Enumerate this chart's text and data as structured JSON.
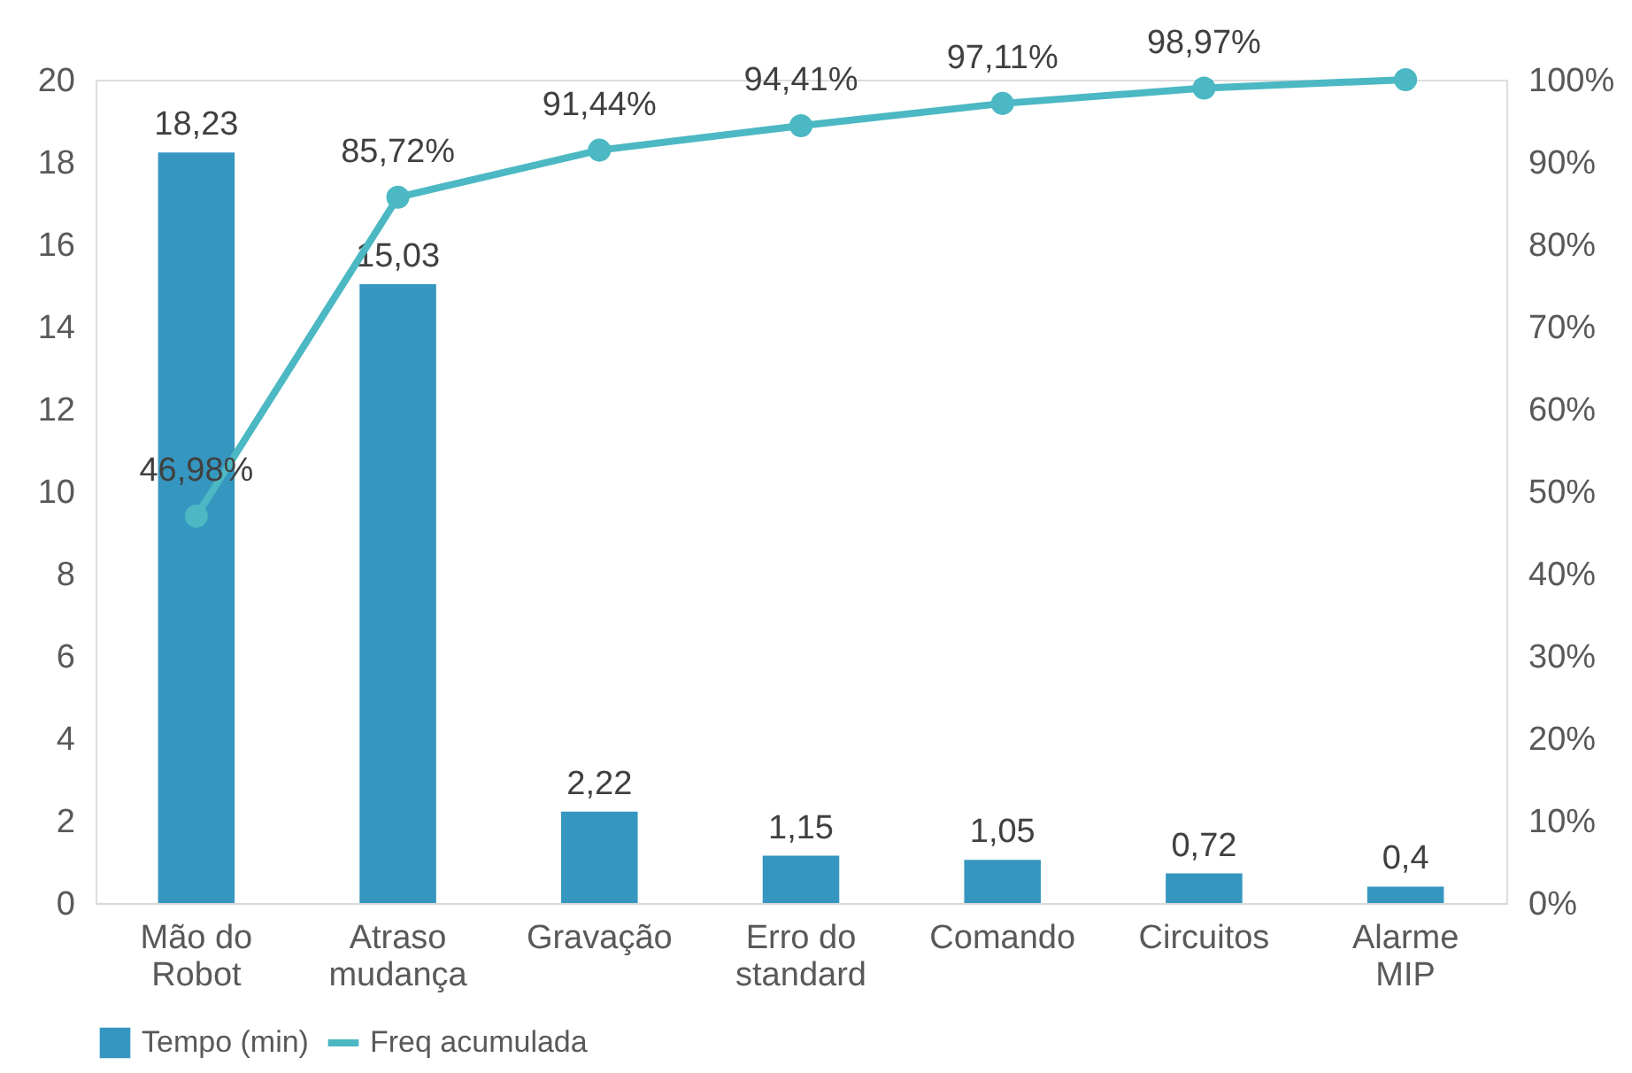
{
  "chart_data": {
    "type": "bar",
    "categories": [
      "Mão do Robot",
      "Atraso mudança",
      "Gravação",
      "Erro do standard",
      "Comando",
      "Circuitos",
      "Alarme MIP"
    ],
    "series": [
      {
        "name": "Tempo (min)",
        "type": "bar",
        "color": "#3596bf",
        "values": [
          18.23,
          15.03,
          2.22,
          1.15,
          1.05,
          0.72,
          0.4
        ],
        "value_labels": [
          "18,23",
          "15,03",
          "2,22",
          "1,15",
          "1,05",
          "0,72",
          "0,4"
        ]
      },
      {
        "name": "Freq acumulada",
        "type": "line",
        "axis": "y2",
        "color": "#4bb8c3",
        "values": [
          46.98,
          85.72,
          91.44,
          94.41,
          97.11,
          98.97,
          100
        ],
        "value_labels": [
          "46,98%",
          "85,72%",
          "91,44%",
          "94,41%",
          "97,11%",
          "98,97%",
          null
        ]
      }
    ],
    "ylim": [
      0,
      20
    ],
    "yticks": [
      0,
      2,
      4,
      6,
      8,
      10,
      12,
      14,
      16,
      18,
      20
    ],
    "y2lim": [
      0,
      100
    ],
    "y2ticks": [
      {
        "value": 0,
        "label": "0%"
      },
      {
        "value": 10,
        "label": "10%"
      },
      {
        "value": 20,
        "label": "20%"
      },
      {
        "value": 30,
        "label": "30%"
      },
      {
        "value": 40,
        "label": "40%"
      },
      {
        "value": 50,
        "label": "50%"
      },
      {
        "value": 60,
        "label": "60%"
      },
      {
        "value": 70,
        "label": "70%"
      },
      {
        "value": 80,
        "label": "80%"
      },
      {
        "value": 90,
        "label": "90%"
      },
      {
        "value": 100,
        "label": "100%"
      }
    ],
    "grid": false,
    "legend": "bottom",
    "marker": "circle",
    "line_style": "solid"
  }
}
